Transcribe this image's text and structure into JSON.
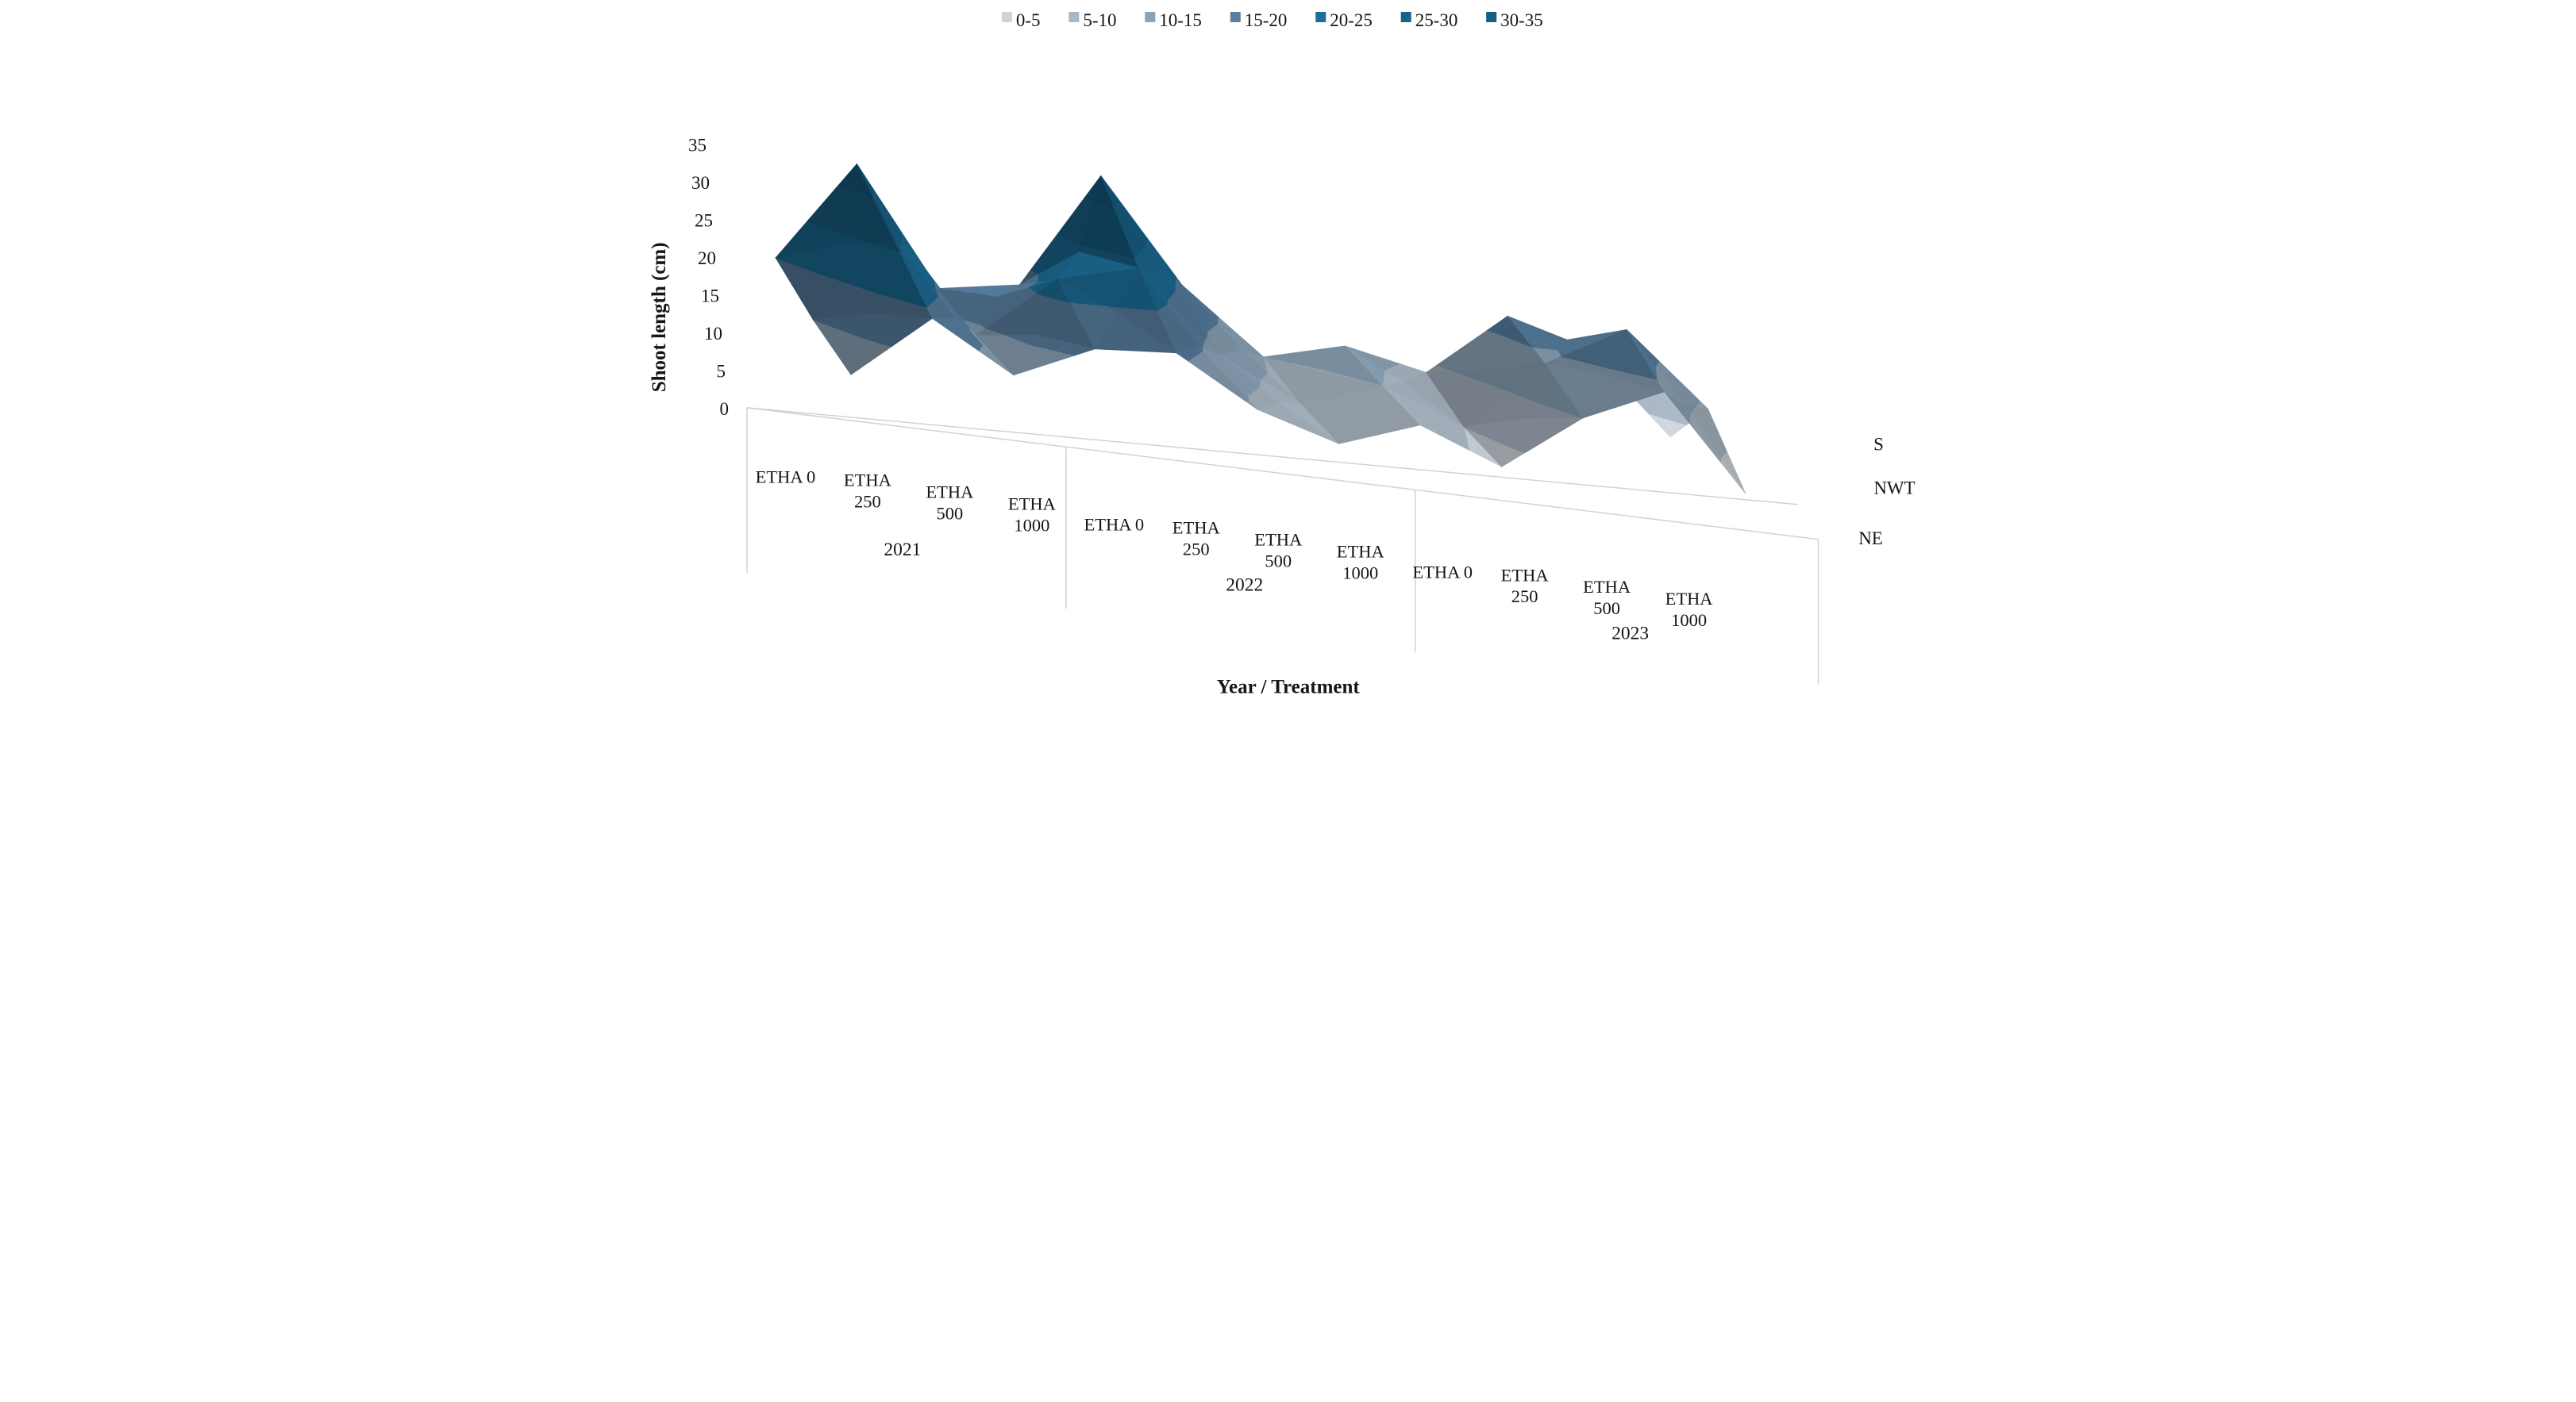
{
  "legend": {
    "bands": [
      {
        "label": "0-5",
        "color": "#ccd3da"
      },
      {
        "label": "5-10",
        "color": "#a9b6c3"
      },
      {
        "label": "10-15",
        "color": "#8ba3b7"
      },
      {
        "label": "15-20",
        "color": "#587fa0"
      },
      {
        "label": "20-25",
        "color": "#1d6e98"
      },
      {
        "label": "25-30",
        "color": "#19638b"
      },
      {
        "label": "30-35",
        "color": "#155e86"
      }
    ]
  },
  "y_axis": {
    "title": "Shoot length (cm)",
    "ticks": [
      0,
      5,
      10,
      15,
      20,
      25,
      30,
      35
    ],
    "min": 0,
    "max": 35,
    "band_size": 5
  },
  "x_axis": {
    "title": "Year / Treatment",
    "groups": [
      {
        "year": "2021",
        "treatments": [
          "ETHA 0",
          "ETHA 250",
          "ETHA 500",
          "ETHA 1000"
        ]
      },
      {
        "year": "2022",
        "treatments": [
          "ETHA 0",
          "ETHA 250",
          "ETHA 500",
          "ETHA 1000"
        ]
      },
      {
        "year": "2023",
        "treatments": [
          "ETHA 0",
          "ETHA 250",
          "ETHA 500",
          "ETHA 1000"
        ]
      }
    ]
  },
  "depth_axis": {
    "series_labels": [
      "S",
      "NWT",
      "NE"
    ]
  },
  "chart_data": {
    "type": "surface",
    "title": "",
    "xlabel": "Year / Treatment",
    "ylabel": "Shoot length (cm)",
    "ylim": [
      0,
      35
    ],
    "band_size": 5,
    "legend_position": "top",
    "grid": false,
    "categories": [
      "2021 ETHA 0",
      "2021 ETHA 250",
      "2021 ETHA 500",
      "2021 ETHA 1000",
      "2022 ETHA 0",
      "2022 ETHA 250",
      "2022 ETHA 500",
      "2022 ETHA 1000",
      "2023 ETHA 0",
      "2023 ETHA 250",
      "2023 ETHA 500",
      "2023 ETHA 1000"
    ],
    "series": [
      {
        "name": "S",
        "values": [
          20,
          33,
          17,
          18,
          33,
          19,
          10,
          12,
          9,
          17,
          13,
          2
        ]
      },
      {
        "name": "NWT",
        "values": [
          15,
          26,
          14,
          22,
          24,
          13,
          7,
          10,
          5,
          14,
          19,
          9
        ]
      },
      {
        "name": "NE",
        "values": [
          11,
          19,
          12,
          16,
          16,
          9,
          5,
          8,
          3,
          10,
          14,
          1
        ]
      }
    ]
  }
}
